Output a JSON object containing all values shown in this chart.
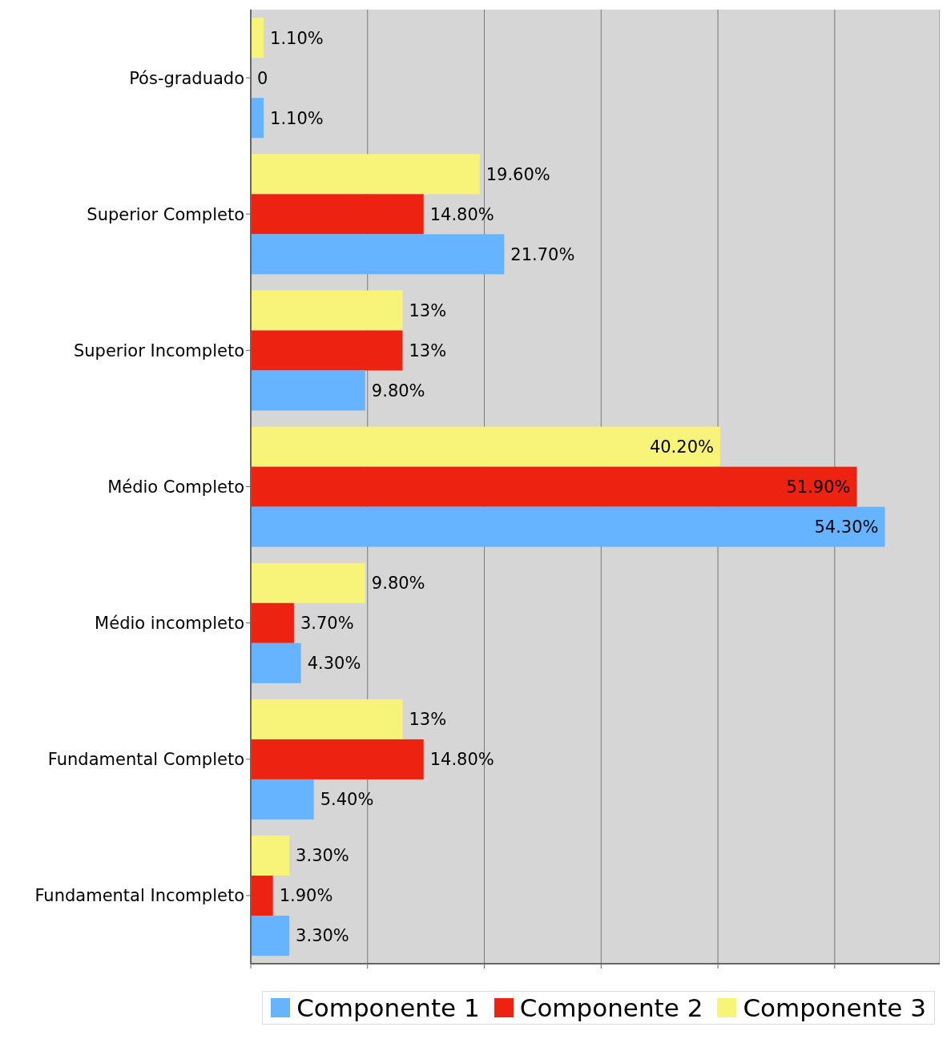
{
  "chart_data": {
    "type": "bar",
    "orientation": "horizontal",
    "categories": [
      "Pós-graduado",
      "Superior Completo",
      "Superior Incompleto",
      "Médio Completo",
      "Médio incompleto",
      "Fundamental Completo",
      "Fundamental Incompleto"
    ],
    "series": [
      {
        "name": "Componente 1",
        "color": "#66b3ff",
        "values": [
          1.1,
          21.7,
          9.8,
          54.3,
          4.3,
          5.4,
          3.3
        ],
        "value_labels": [
          "1.10%",
          "21.70%",
          "9.80%",
          "54.30%",
          "4.30%",
          "5.40%",
          "3.30%"
        ]
      },
      {
        "name": "Componente 2",
        "color": "#ee2211",
        "values": [
          0,
          14.8,
          13,
          51.9,
          3.7,
          14.8,
          1.9
        ],
        "value_labels": [
          "0",
          "14.80%",
          "13%",
          "51.90%",
          "3.70%",
          "14.80%",
          "1.90%"
        ]
      },
      {
        "name": "Componente 3",
        "color": "#f8f47a",
        "values": [
          1.1,
          19.6,
          13,
          40.2,
          9.8,
          13,
          3.3
        ],
        "value_labels": [
          "1.10%",
          "19.60%",
          "13%",
          "40.20%",
          "9.80%",
          "13%",
          "3.30%"
        ]
      }
    ],
    "xlim": [
      0,
      59
    ],
    "xticks": [
      {
        "value": 0,
        "label": null
      },
      {
        "value": 10,
        "label": null
      },
      {
        "value": 20,
        "label": null
      },
      {
        "value": 30,
        "label": null
      },
      {
        "value": 40,
        "label": null
      },
      {
        "value": 50,
        "label": null
      }
    ],
    "tick_labels": "y",
    "grid": "x",
    "legend": "bottom"
  }
}
